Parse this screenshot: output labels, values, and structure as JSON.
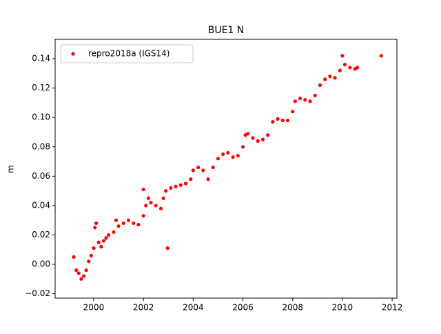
{
  "chart_data": {
    "type": "scatter",
    "title": "BUE1 N",
    "ylabel": "m",
    "series": [
      {
        "name": "repro2018a (IGS14)",
        "color": "#ff0000",
        "x": [
          1999.2,
          1999.3,
          1999.4,
          1999.5,
          1999.6,
          1999.7,
          1999.8,
          1999.9,
          2000.0,
          2000.05,
          2000.1,
          2000.2,
          2000.3,
          2000.4,
          2000.5,
          2000.6,
          2000.8,
          2000.9,
          2001.0,
          2001.2,
          2001.4,
          2001.6,
          2001.8,
          2002.0,
          2002.0,
          2002.1,
          2002.2,
          2002.3,
          2002.5,
          2002.7,
          2002.8,
          2002.9,
          2002.97,
          2003.1,
          2003.3,
          2003.5,
          2003.7,
          2003.9,
          2004.0,
          2004.2,
          2004.4,
          2004.6,
          2004.8,
          2005.0,
          2005.2,
          2005.4,
          2005.6,
          2005.8,
          2006.0,
          2006.1,
          2006.2,
          2006.4,
          2006.6,
          2006.8,
          2007.0,
          2007.2,
          2007.4,
          2007.6,
          2007.8,
          2008.0,
          2008.1,
          2008.3,
          2008.5,
          2008.7,
          2008.9,
          2009.1,
          2009.3,
          2009.5,
          2009.7,
          2009.9,
          2010.0,
          2010.1,
          2010.3,
          2010.5,
          2010.6,
          2011.56
        ],
        "values": [
          0.005,
          -0.004,
          -0.006,
          -0.01,
          -0.008,
          -0.004,
          0.002,
          0.006,
          0.011,
          0.025,
          0.028,
          0.015,
          0.012,
          0.016,
          0.018,
          0.02,
          0.022,
          0.03,
          0.026,
          0.028,
          0.03,
          0.028,
          0.027,
          0.033,
          0.051,
          0.04,
          0.045,
          0.042,
          0.04,
          0.038,
          0.045,
          0.05,
          0.011,
          0.052,
          0.053,
          0.054,
          0.055,
          0.058,
          0.064,
          0.066,
          0.064,
          0.058,
          0.066,
          0.072,
          0.075,
          0.076,
          0.073,
          0.074,
          0.08,
          0.088,
          0.089,
          0.086,
          0.084,
          0.085,
          0.088,
          0.097,
          0.099,
          0.098,
          0.098,
          0.104,
          0.111,
          0.113,
          0.112,
          0.111,
          0.115,
          0.122,
          0.126,
          0.128,
          0.127,
          0.132,
          0.142,
          0.136,
          0.134,
          0.133,
          0.134,
          0.142
        ]
      }
    ],
    "xlim": [
      1998.45,
      2012.19
    ],
    "xticks": [
      2000,
      2002,
      2004,
      2006,
      2008,
      2010,
      2012
    ],
    "ylim": [
      -0.023,
      0.1532
    ],
    "yticks": [
      {
        "value": -0.02,
        "label": "−0.02"
      },
      {
        "value": 0,
        "label": "0.00"
      },
      {
        "value": 0.02,
        "label": "0.02"
      },
      {
        "value": 0.04,
        "label": "0.04"
      },
      {
        "value": 0.06,
        "label": "0.06"
      },
      {
        "value": 0.08,
        "label": "0.08"
      },
      {
        "value": 0.1,
        "label": "0.10"
      },
      {
        "value": 0.12,
        "label": "0.12"
      },
      {
        "value": 0.14,
        "label": "0.14"
      }
    ],
    "legend": "upper left"
  }
}
